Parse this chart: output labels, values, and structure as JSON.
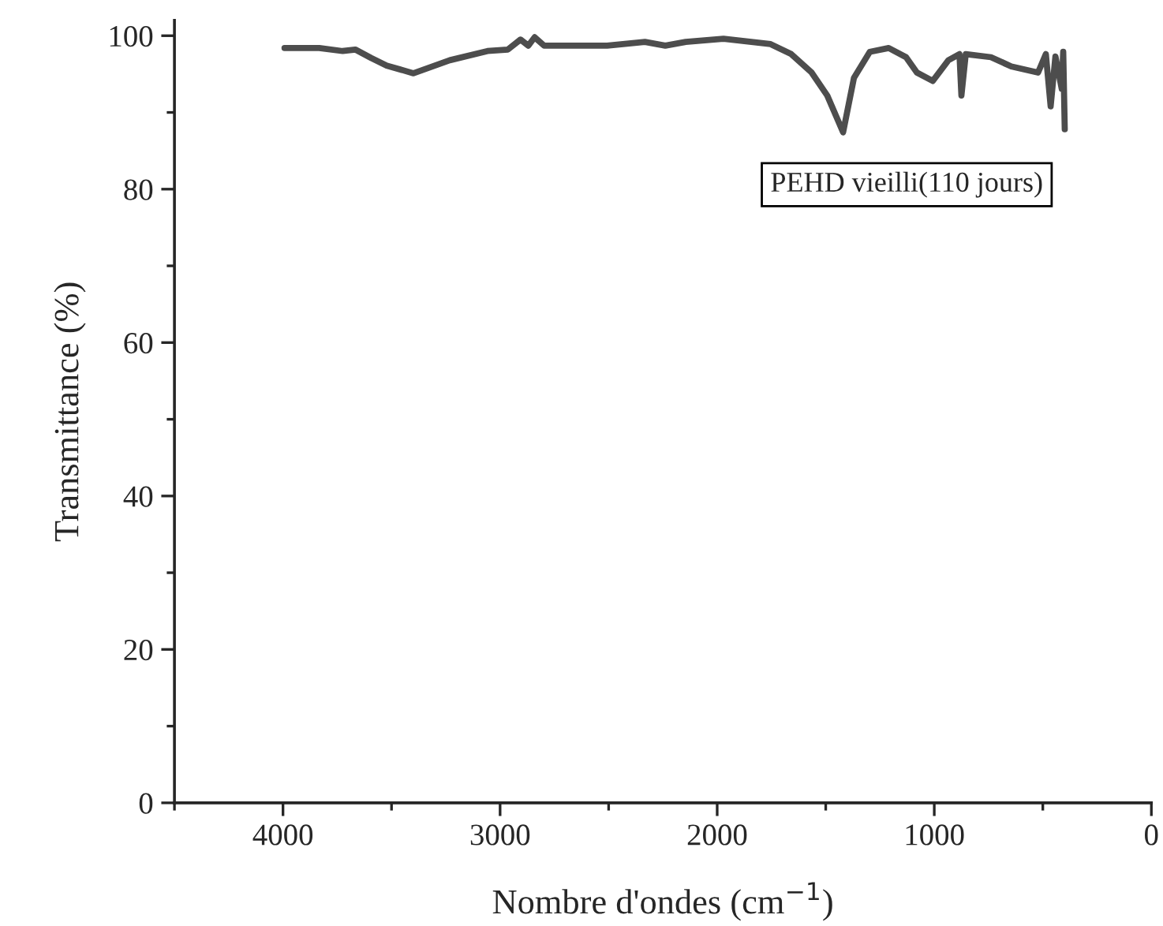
{
  "chart_data": {
    "type": "line",
    "xlabel": "Nombre d'ondes (cm$^{−1}$)",
    "ylabel": "Transmittance (%)",
    "annotations": [
      "PEHD vieilli(110 jours)"
    ],
    "x": [
      3993,
      3833,
      3725,
      3667,
      3594,
      3522,
      3399,
      3232,
      3058,
      2964,
      2906,
      2870,
      2841,
      2797,
      2507,
      2333,
      2239,
      2145,
      1971,
      1754,
      1659,
      1565,
      1493,
      1420,
      1370,
      1297,
      1210,
      1130,
      1080,
      1007,
      935,
      884,
      875,
      855,
      739,
      645,
      522,
      486,
      464,
      442,
      413,
      406,
      399
    ],
    "series": [
      {
        "color": "#4d4d4d",
        "values": [
          98.4,
          98.4,
          98.0,
          98.2,
          97.1,
          96.1,
          95.1,
          96.8,
          98.0,
          98.2,
          99.5,
          98.7,
          99.8,
          98.7,
          98.7,
          99.2,
          98.7,
          99.2,
          99.6,
          98.9,
          97.6,
          95.2,
          92.2,
          87.4,
          94.5,
          97.9,
          98.4,
          97.2,
          95.2,
          94.1,
          96.8,
          97.6,
          92.2,
          97.6,
          97.2,
          96.0,
          95.2,
          97.6,
          90.8,
          97.3,
          93.1,
          97.9,
          87.8
        ]
      }
    ],
    "xlim": [
      4500,
      0
    ],
    "xticks": [
      4000,
      3000,
      2000,
      1000,
      0
    ],
    "ylim": [
      0,
      102
    ],
    "yticks": [
      0,
      20,
      40,
      60,
      80,
      100
    ],
    "grid": false,
    "legend": false,
    "marker": "none",
    "line_style": "solid"
  }
}
